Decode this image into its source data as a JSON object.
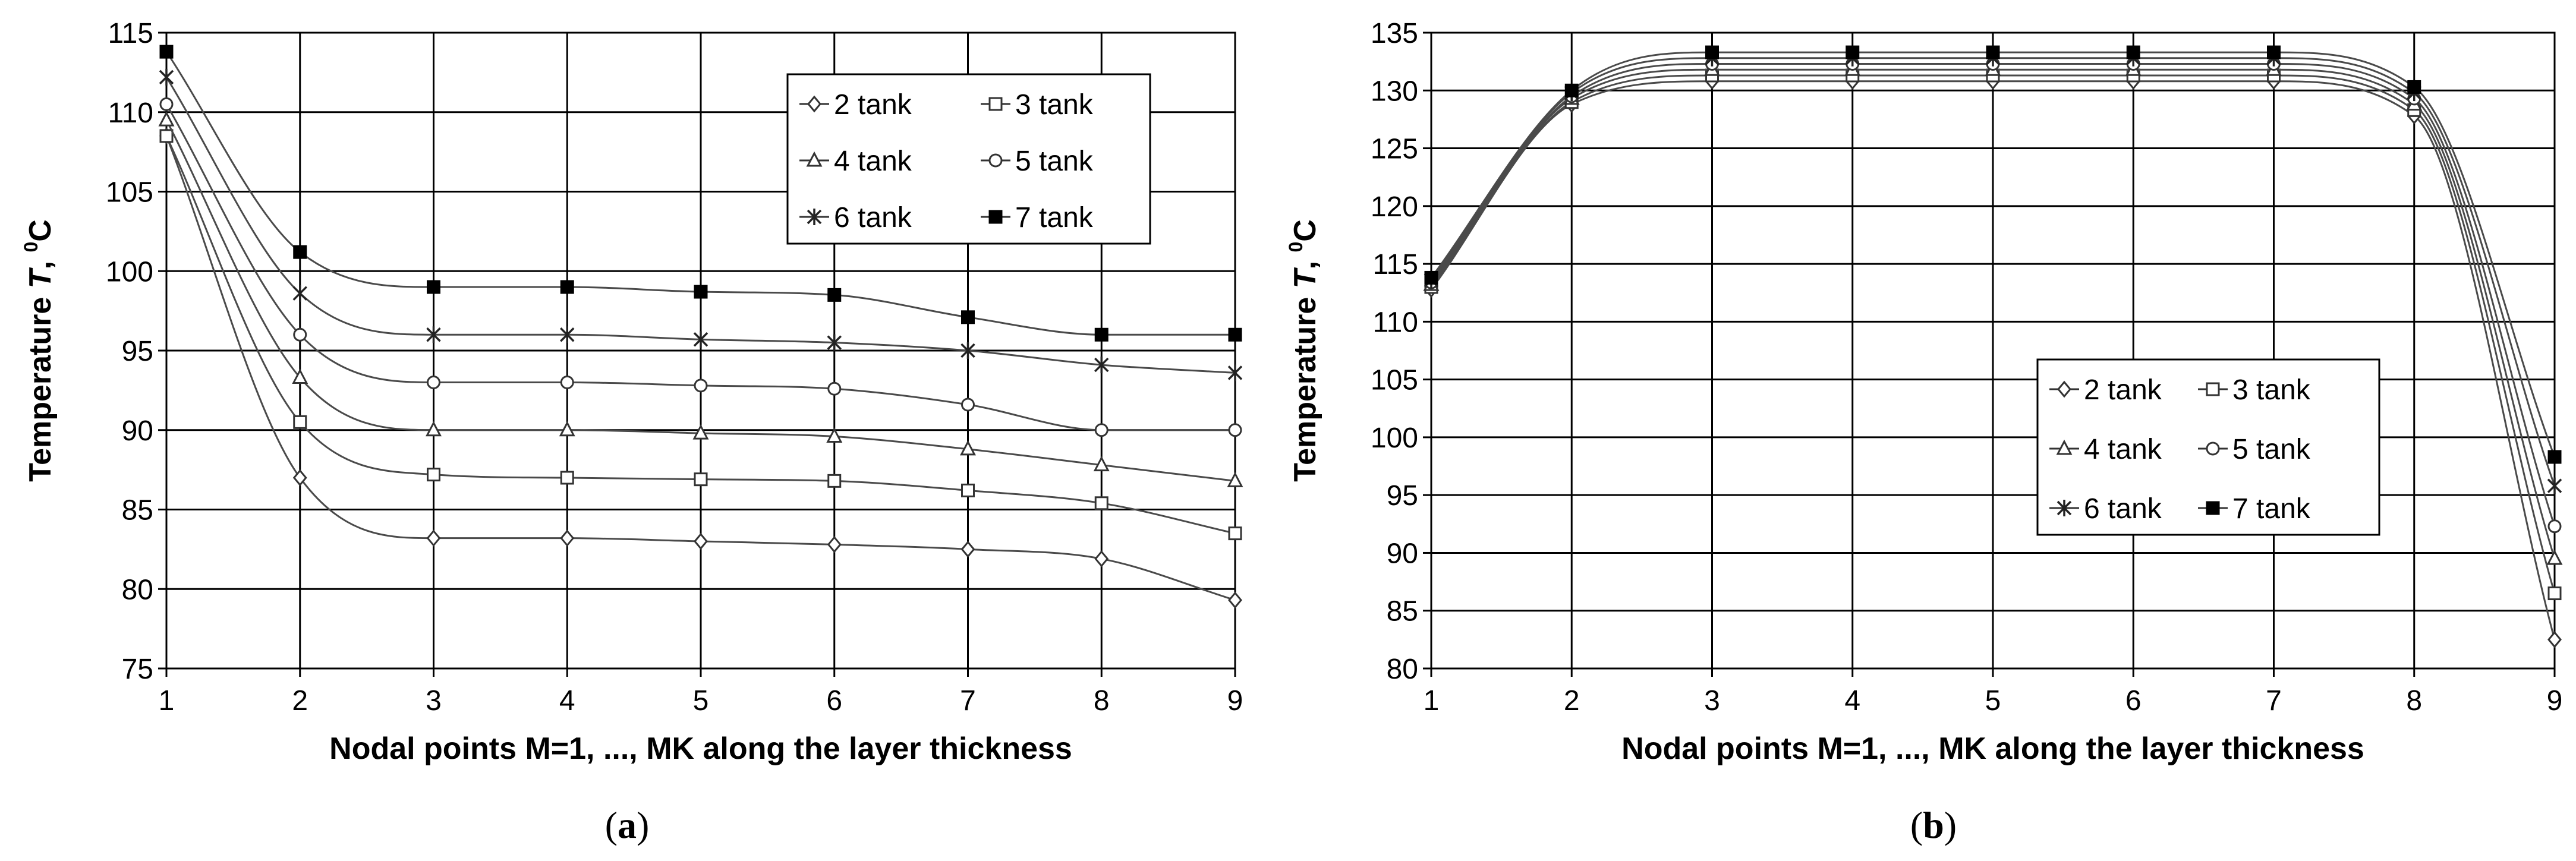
{
  "chart_data": [
    {
      "type": "line",
      "panel_label": "(a)",
      "panel_letter": "a",
      "xlabel": "Nodal points M=1, ..., MK along the layer thickness",
      "ylabel_prefix": "Temperature ",
      "ylabel_var": "T",
      "ylabel_mid": ", ",
      "ylabel_sup": "0",
      "ylabel_unit": "C",
      "xlim": [
        1,
        9
      ],
      "ylim": [
        75,
        115
      ],
      "xticks": [
        "1",
        "2",
        "3",
        "4",
        "5",
        "6",
        "7",
        "8",
        "9"
      ],
      "yticks": [
        "75",
        "80",
        "85",
        "90",
        "95",
        "100",
        "105",
        "110",
        "115"
      ],
      "grid": true,
      "legend_position": "top-right",
      "x": [
        1,
        2,
        3,
        4,
        5,
        6,
        7,
        8,
        9
      ],
      "series": [
        {
          "name": "2 tank",
          "marker": "diamond",
          "values": [
            108.5,
            87.0,
            83.2,
            83.2,
            83.0,
            82.8,
            82.5,
            81.9,
            79.3
          ]
        },
        {
          "name": "3 tank",
          "marker": "square-open",
          "values": [
            108.5,
            90.5,
            87.2,
            87.0,
            86.9,
            86.8,
            86.2,
            85.4,
            83.5
          ]
        },
        {
          "name": "4 tank",
          "marker": "triangle",
          "values": [
            109.5,
            93.3,
            90.0,
            90.0,
            89.8,
            89.6,
            88.8,
            87.8,
            86.8
          ]
        },
        {
          "name": "5 tank",
          "marker": "circle",
          "values": [
            110.5,
            96.0,
            93.0,
            93.0,
            92.8,
            92.6,
            91.6,
            90.0,
            90.0
          ]
        },
        {
          "name": "6 tank",
          "marker": "star",
          "values": [
            112.2,
            98.6,
            96.0,
            96.0,
            95.7,
            95.5,
            95.0,
            94.1,
            93.6
          ]
        },
        {
          "name": "7 tank",
          "marker": "square-filled",
          "values": [
            113.8,
            101.2,
            99.0,
            99.0,
            98.7,
            98.5,
            97.1,
            96.0,
            96.0
          ]
        }
      ]
    },
    {
      "type": "line",
      "panel_label": "(b)",
      "panel_letter": "b",
      "xlabel": "Nodal points M=1, ..., MK along the layer thickness",
      "ylabel_prefix": "Temperature ",
      "ylabel_var": "T",
      "ylabel_mid": ", ",
      "ylabel_sup": "0",
      "ylabel_unit": "C",
      "xlim": [
        1,
        9
      ],
      "ylim": [
        80,
        135
      ],
      "xticks": [
        "1",
        "2",
        "3",
        "4",
        "5",
        "6",
        "7",
        "8",
        "9"
      ],
      "yticks": [
        "80",
        "85",
        "90",
        "95",
        "100",
        "105",
        "110",
        "115",
        "120",
        "125",
        "130",
        "135"
      ],
      "grid": true,
      "legend_position": "center-right",
      "x": [
        1,
        2,
        3,
        4,
        5,
        6,
        7,
        8,
        9
      ],
      "series": [
        {
          "name": "2 tank",
          "marker": "diamond",
          "values": [
            112.8,
            128.8,
            130.8,
            130.8,
            130.8,
            130.8,
            130.8,
            127.8,
            82.5
          ]
        },
        {
          "name": "3 tank",
          "marker": "square-open",
          "values": [
            113.0,
            129.0,
            131.3,
            131.3,
            131.3,
            131.3,
            131.3,
            128.3,
            86.5
          ]
        },
        {
          "name": "4 tank",
          "marker": "triangle",
          "values": [
            113.2,
            129.3,
            131.8,
            131.8,
            131.8,
            131.8,
            131.8,
            128.8,
            89.5
          ]
        },
        {
          "name": "5 tank",
          "marker": "circle",
          "values": [
            113.4,
            129.5,
            132.3,
            132.3,
            132.3,
            132.3,
            132.3,
            129.3,
            92.3
          ]
        },
        {
          "name": "6 tank",
          "marker": "star",
          "values": [
            113.6,
            129.8,
            132.8,
            132.8,
            132.8,
            132.8,
            132.8,
            129.8,
            95.8
          ]
        },
        {
          "name": "7 tank",
          "marker": "square-filled",
          "values": [
            113.8,
            130.0,
            133.3,
            133.3,
            133.3,
            133.3,
            133.3,
            130.3,
            98.3
          ]
        }
      ]
    }
  ]
}
